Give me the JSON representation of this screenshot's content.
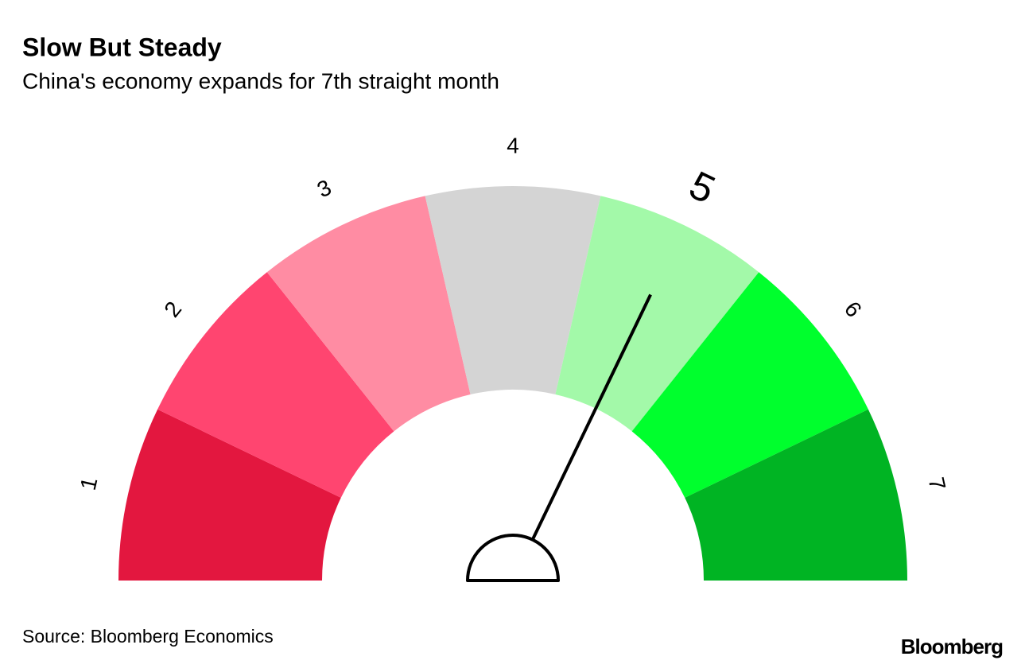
{
  "chart_data": {
    "type": "gauge",
    "title": "Slow But Steady",
    "subtitle": "China's economy expands for 7th straight month",
    "categories": [
      "1",
      "2",
      "3",
      "4",
      "5",
      "6",
      "7"
    ],
    "colors": [
      "#e3173f",
      "#ff4570",
      "#ff8ca3",
      "#d4d4d4",
      "#a3f9a9",
      "#00ff2d",
      "#00b423"
    ],
    "xlim": [
      0.5,
      7.5
    ],
    "value": 5,
    "source": "Source: Bloomberg Economics",
    "brand": "Bloomberg"
  }
}
